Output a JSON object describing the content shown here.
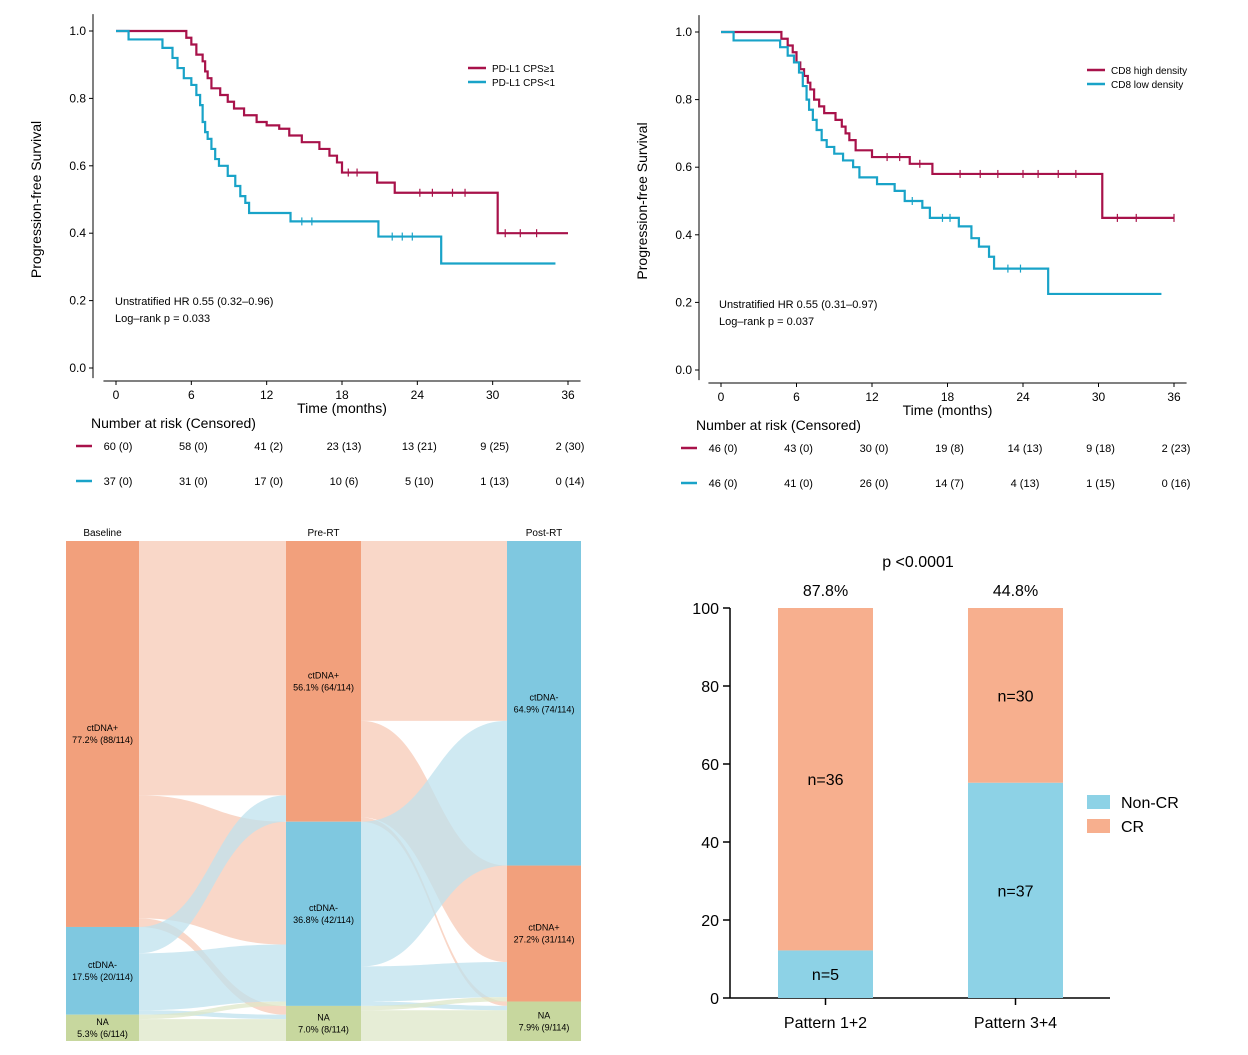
{
  "colors": {
    "red": "#A8124A",
    "blue": "#19A3C8",
    "salmon": "#F2A07C",
    "salmon_light": "#F7C9B6",
    "sky": "#7FC8E0",
    "sky_light": "#BFE2EE",
    "na": "#C7D79E",
    "na_light": "#DEE7C8",
    "bar_orange": "#F7AF8E",
    "bar_blue": "#8DD2E6"
  },
  "chart_data": [
    {
      "type": "line",
      "subtype": "kaplan-meier",
      "ylabel": "Progression-free Survival",
      "xlabel": "Time (months)",
      "xlim": [
        0,
        36
      ],
      "ylim": [
        0,
        1
      ],
      "x_ticks": [
        "0",
        "6",
        "12",
        "18",
        "24",
        "30",
        "36"
      ],
      "y_ticks": [
        "0.0",
        "0.2",
        "0.4",
        "0.6",
        "0.8",
        "1.0"
      ],
      "annotation": [
        "Unstratified HR 0.55 (0.32–0.96)",
        "Log–rank p = 0.033"
      ],
      "risk_title": "Number at risk (Censored)",
      "series": [
        {
          "name": "PD-L1 CPS≥1",
          "color": "#A8124A",
          "steps": [
            [
              0,
              1.0
            ],
            [
              5.6,
              0.98
            ],
            [
              6.0,
              0.96
            ],
            [
              6.4,
              0.93
            ],
            [
              6.9,
              0.91
            ],
            [
              7.1,
              0.88
            ],
            [
              7.3,
              0.86
            ],
            [
              7.6,
              0.83
            ],
            [
              8.3,
              0.81
            ],
            [
              8.9,
              0.79
            ],
            [
              9.4,
              0.77
            ],
            [
              10.2,
              0.75
            ],
            [
              11.2,
              0.73
            ],
            [
              12.0,
              0.72
            ],
            [
              13.0,
              0.71
            ],
            [
              13.8,
              0.69
            ],
            [
              14.8,
              0.67
            ],
            [
              16.2,
              0.65
            ],
            [
              17.0,
              0.63
            ],
            [
              17.6,
              0.61
            ],
            [
              18.0,
              0.58
            ],
            [
              20.0,
              0.58
            ],
            [
              20.8,
              0.55
            ],
            [
              21.5,
              0.55
            ],
            [
              22.2,
              0.52
            ],
            [
              30.0,
              0.52
            ],
            [
              30.4,
              0.4
            ],
            [
              36.0,
              0.4
            ]
          ],
          "censored": [
            [
              18.5,
              0.58
            ],
            [
              19.2,
              0.58
            ],
            [
              24.2,
              0.52
            ],
            [
              25.2,
              0.52
            ],
            [
              26.8,
              0.52
            ],
            [
              27.8,
              0.52
            ],
            [
              31.0,
              0.4
            ],
            [
              32.2,
              0.4
            ],
            [
              33.5,
              0.4
            ]
          ],
          "at_risk": [
            "60 (0)",
            "58 (0)",
            "41 (2)",
            "23 (13)",
            "13 (21)",
            "9 (25)",
            "2 (30)"
          ]
        },
        {
          "name": "PD-L1 CPS<1",
          "color": "#19A3C8",
          "steps": [
            [
              0,
              1.0
            ],
            [
              1.0,
              0.975
            ],
            [
              3.7,
              0.95
            ],
            [
              4.5,
              0.92
            ],
            [
              4.9,
              0.89
            ],
            [
              5.4,
              0.86
            ],
            [
              6.0,
              0.84
            ],
            [
              6.4,
              0.81
            ],
            [
              6.7,
              0.78
            ],
            [
              6.9,
              0.73
            ],
            [
              7.1,
              0.7
            ],
            [
              7.3,
              0.68
            ],
            [
              7.6,
              0.65
            ],
            [
              7.9,
              0.62
            ],
            [
              8.2,
              0.6
            ],
            [
              8.9,
              0.57
            ],
            [
              9.5,
              0.54
            ],
            [
              9.9,
              0.51
            ],
            [
              10.3,
              0.49
            ],
            [
              10.6,
              0.46
            ],
            [
              13.9,
              0.435
            ],
            [
              20.9,
              0.39
            ],
            [
              25.9,
              0.31
            ],
            [
              35.0,
              0.31
            ]
          ],
          "censored": [
            [
              14.8,
              0.435
            ],
            [
              15.6,
              0.435
            ],
            [
              22.0,
              0.39
            ],
            [
              22.8,
              0.39
            ],
            [
              23.6,
              0.39
            ]
          ],
          "at_risk": [
            "37 (0)",
            "31 (0)",
            "17 (0)",
            "10 (6)",
            "5 (10)",
            "1 (13)",
            "0 (14)"
          ]
        }
      ]
    },
    {
      "type": "line",
      "subtype": "kaplan-meier",
      "ylabel": "Progression-free Survival",
      "xlabel": "Time (months)",
      "xlim": [
        0,
        36
      ],
      "ylim": [
        0,
        1
      ],
      "x_ticks": [
        "0",
        "6",
        "12",
        "18",
        "24",
        "30",
        "36"
      ],
      "y_ticks": [
        "0.0",
        "0.2",
        "0.4",
        "0.6",
        "0.8",
        "1.0"
      ],
      "annotation": [
        "Unstratified HR 0.55 (0.31–0.97)",
        "Log–rank p = 0.037"
      ],
      "risk_title": "Number at risk (Censored)",
      "series": [
        {
          "name": "CD8 high density",
          "color": "#A8124A",
          "steps": [
            [
              0,
              1.0
            ],
            [
              4.8,
              0.98
            ],
            [
              5.3,
              0.96
            ],
            [
              5.7,
              0.94
            ],
            [
              6.0,
              0.91
            ],
            [
              6.3,
              0.89
            ],
            [
              6.6,
              0.87
            ],
            [
              6.9,
              0.85
            ],
            [
              7.1,
              0.83
            ],
            [
              7.4,
              0.8
            ],
            [
              7.8,
              0.78
            ],
            [
              8.2,
              0.76
            ],
            [
              9.1,
              0.74
            ],
            [
              9.6,
              0.72
            ],
            [
              9.9,
              0.7
            ],
            [
              10.2,
              0.68
            ],
            [
              10.7,
              0.65
            ],
            [
              12.0,
              0.63
            ],
            [
              15.0,
              0.61
            ],
            [
              16.8,
              0.58
            ],
            [
              30.0,
              0.58
            ],
            [
              30.3,
              0.45
            ],
            [
              36.0,
              0.45
            ]
          ],
          "censored": [
            [
              13.2,
              0.63
            ],
            [
              14.2,
              0.63
            ],
            [
              15.8,
              0.61
            ],
            [
              19.0,
              0.58
            ],
            [
              20.6,
              0.58
            ],
            [
              22.0,
              0.58
            ],
            [
              24.0,
              0.58
            ],
            [
              25.2,
              0.58
            ],
            [
              26.8,
              0.58
            ],
            [
              28.2,
              0.58
            ],
            [
              31.5,
              0.45
            ],
            [
              33.0,
              0.45
            ],
            [
              36.0,
              0.45
            ]
          ],
          "at_risk": [
            "46 (0)",
            "43 (0)",
            "30 (0)",
            "19 (8)",
            "14 (13)",
            "9 (18)",
            "2 (23)"
          ]
        },
        {
          "name": "CD8 low density",
          "color": "#19A3C8",
          "steps": [
            [
              0,
              1.0
            ],
            [
              1.0,
              0.975
            ],
            [
              4.7,
              0.955
            ],
            [
              5.3,
              0.93
            ],
            [
              5.8,
              0.91
            ],
            [
              6.2,
              0.88
            ],
            [
              6.5,
              0.84
            ],
            [
              6.8,
              0.8
            ],
            [
              7.0,
              0.77
            ],
            [
              7.3,
              0.74
            ],
            [
              7.6,
              0.71
            ],
            [
              8.0,
              0.68
            ],
            [
              8.4,
              0.66
            ],
            [
              9.0,
              0.64
            ],
            [
              9.7,
              0.62
            ],
            [
              10.5,
              0.6
            ],
            [
              11.0,
              0.57
            ],
            [
              12.4,
              0.55
            ],
            [
              13.8,
              0.53
            ],
            [
              14.6,
              0.5
            ],
            [
              16.0,
              0.48
            ],
            [
              16.6,
              0.45
            ],
            [
              18.9,
              0.425
            ],
            [
              19.9,
              0.39
            ],
            [
              20.5,
              0.365
            ],
            [
              21.3,
              0.335
            ],
            [
              21.7,
              0.3
            ],
            [
              26.0,
              0.225
            ],
            [
              35.0,
              0.225
            ]
          ],
          "censored": [
            [
              15.2,
              0.5
            ],
            [
              17.6,
              0.45
            ],
            [
              18.2,
              0.45
            ],
            [
              22.8,
              0.3
            ],
            [
              23.8,
              0.3
            ]
          ],
          "at_risk": [
            "46 (0)",
            "41 (0)",
            "26 (0)",
            "14 (7)",
            "4 (13)",
            "1 (15)",
            "0 (16)"
          ]
        }
      ]
    },
    {
      "type": "sankey",
      "stages": [
        "Baseline",
        "Pre-RT",
        "Post-RT"
      ],
      "total": 114,
      "nodes": [
        [
          {
            "label": "ctDNA+",
            "detail": "77.2% (88/114)",
            "value": 88,
            "kind": "pos"
          },
          {
            "label": "ctDNA-",
            "detail": "17.5% (20/114)",
            "value": 20,
            "kind": "neg"
          },
          {
            "label": "NA",
            "detail": "5.3% (6/114)",
            "value": 6,
            "kind": "na"
          }
        ],
        [
          {
            "label": "ctDNA+",
            "detail": "56.1% (64/114)",
            "value": 64,
            "kind": "pos"
          },
          {
            "label": "ctDNA-",
            "detail": "36.8% (42/114)",
            "value": 42,
            "kind": "neg"
          },
          {
            "label": "NA",
            "detail": "7.0% (8/114)",
            "value": 8,
            "kind": "na"
          }
        ],
        [
          {
            "label": "ctDNA-",
            "detail": "64.9% (74/114)",
            "value": 74,
            "kind": "neg"
          },
          {
            "label": "ctDNA+",
            "detail": "27.2% (31/114)",
            "value": 31,
            "kind": "pos"
          },
          {
            "label": "NA",
            "detail": "7.9% (9/114)",
            "value": 9,
            "kind": "na"
          }
        ]
      ],
      "flows": [
        {
          "stage": 0,
          "from": 0,
          "to": 0,
          "value": 58
        },
        {
          "stage": 0,
          "from": 0,
          "to": 1,
          "value": 28
        },
        {
          "stage": 0,
          "from": 0,
          "to": 2,
          "value": 2
        },
        {
          "stage": 0,
          "from": 1,
          "to": 0,
          "value": 6
        },
        {
          "stage": 0,
          "from": 1,
          "to": 1,
          "value": 13
        },
        {
          "stage": 0,
          "from": 1,
          "to": 2,
          "value": 1
        },
        {
          "stage": 0,
          "from": 2,
          "to": 1,
          "value": 1
        },
        {
          "stage": 0,
          "from": 2,
          "to": 2,
          "value": 5
        },
        {
          "stage": 1,
          "from": 0,
          "to": 0,
          "value": 41
        },
        {
          "stage": 1,
          "from": 0,
          "to": 1,
          "value": 22
        },
        {
          "stage": 1,
          "from": 0,
          "to": 2,
          "value": 1
        },
        {
          "stage": 1,
          "from": 1,
          "to": 0,
          "value": 33
        },
        {
          "stage": 1,
          "from": 1,
          "to": 1,
          "value": 8
        },
        {
          "stage": 1,
          "from": 1,
          "to": 2,
          "value": 1
        },
        {
          "stage": 1,
          "from": 2,
          "to": 1,
          "value": 1
        },
        {
          "stage": 1,
          "from": 2,
          "to": 2,
          "value": 7
        }
      ]
    },
    {
      "type": "bar",
      "stacked": true,
      "title": "p <0.0001",
      "categories": [
        "Pattern 1+2",
        "Pattern 3+4"
      ],
      "percent_labels": [
        "87.8%",
        "44.8%"
      ],
      "ylim": [
        0,
        100
      ],
      "y_ticks": [
        "0",
        "20",
        "40",
        "60",
        "80",
        "100"
      ],
      "series": [
        {
          "name": "Non-CR",
          "values": [
            12.2,
            55.2
          ],
          "counts": [
            "n=5",
            "n=37"
          ],
          "color": "#8DD2E6"
        },
        {
          "name": "CR",
          "values": [
            87.8,
            44.8
          ],
          "counts": [
            "n=36",
            "n=30"
          ],
          "color": "#F7AF8E"
        }
      ],
      "legend": [
        "Non-CR",
        "CR"
      ]
    }
  ]
}
